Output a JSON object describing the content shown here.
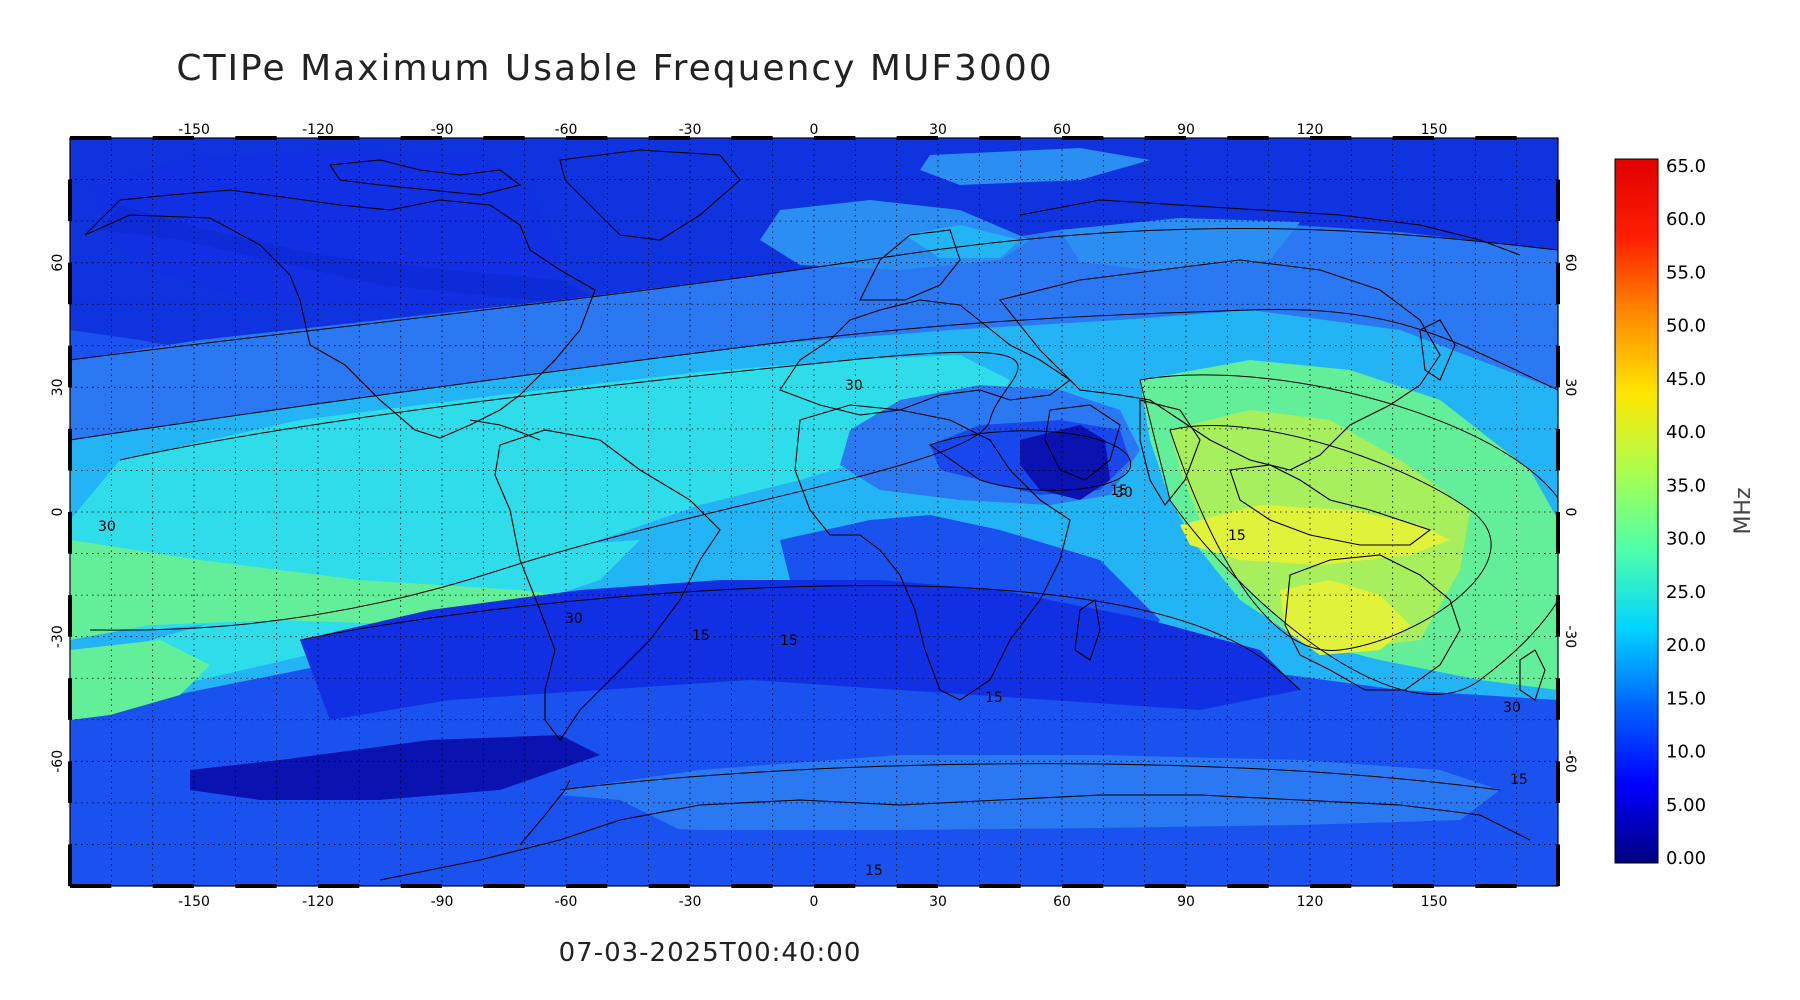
{
  "title": "CTIPe Maximum Usable Frequency MUF3000",
  "timestamp": "07-03-2025T00:40:00",
  "map": {
    "projection": "equirectangular",
    "lon_range": [
      -180,
      180
    ],
    "lat_range": [
      -90,
      90
    ],
    "lon_ticks": [
      "-150",
      "-120",
      "-90",
      "-60",
      "-30",
      "0",
      "30",
      "60",
      "90",
      "120",
      "150"
    ],
    "lat_ticks_left": [
      "60",
      "30",
      "0",
      "-30",
      "-60"
    ],
    "lat_ticks_right": [
      "60",
      "30",
      "0",
      "-30",
      "-60"
    ],
    "grid": "dotted",
    "contour_labels": [
      "30",
      "30",
      "30",
      "30",
      "15",
      "15",
      "15",
      "15",
      "15",
      "15",
      "15",
      "30"
    ]
  },
  "colorbar": {
    "unit": "MHz",
    "range": [
      0,
      65
    ],
    "tick_labels": [
      "65.0",
      "60.0",
      "55.0",
      "50.0",
      "45.0",
      "40.0",
      "35.0",
      "30.0",
      "25.0",
      "20.0",
      "15.0",
      "10.0",
      "5.00",
      "0.00"
    ],
    "colors": [
      "#00007f",
      "#0000ff",
      "#0063ff",
      "#00d4ff",
      "#4effa9",
      "#a9ff4e",
      "#ffe600",
      "#ff8c00",
      "#ff1e00",
      "#e00000"
    ]
  },
  "colors": {
    "band_low": "#0a1fd6",
    "band_10_15": "#1648ee",
    "band_15_20": "#2a78f2",
    "band_20_25": "#22b4f5",
    "band_25_30": "#2fdcea",
    "band_30_35": "#63ef9a",
    "band_35_40": "#a8ef5e",
    "band_40_45": "#e1f23a",
    "band_very_low": "#0a12b0"
  }
}
